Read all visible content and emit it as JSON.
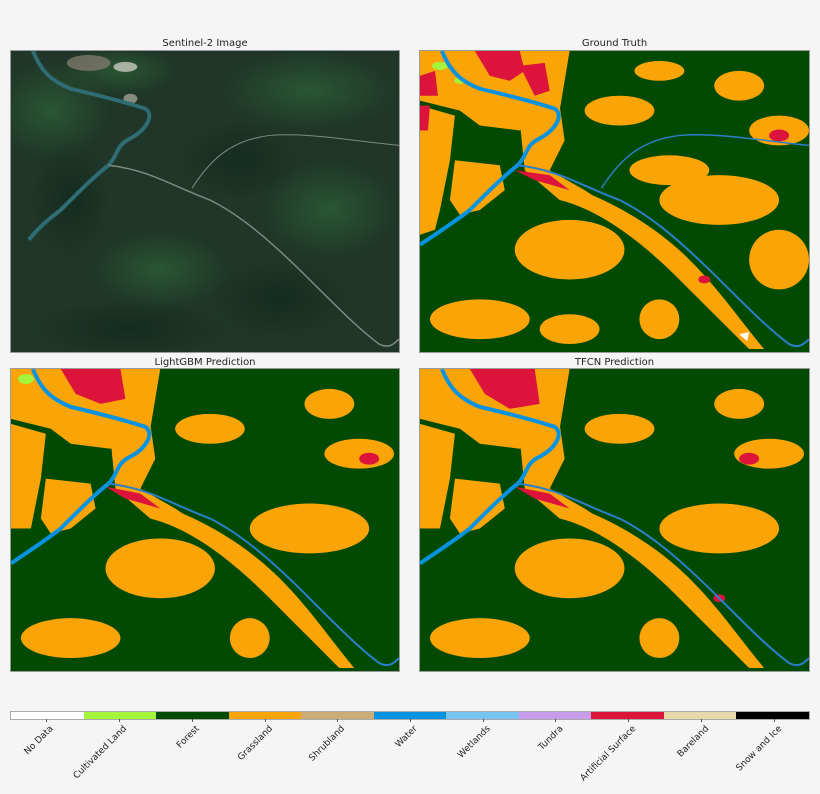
{
  "figure": {
    "panels": [
      {
        "id": "sentinel",
        "title": "Sentinel-2 Image"
      },
      {
        "id": "ground-truth",
        "title": "Ground Truth"
      },
      {
        "id": "lightgbm",
        "title": "LightGBM Prediction"
      },
      {
        "id": "tfcn",
        "title": "TFCN Prediction"
      }
    ]
  },
  "legend": {
    "classes": [
      {
        "label": "No Data",
        "color": "#ffffff"
      },
      {
        "label": "Cultivated Land",
        "color": "#a5f43c"
      },
      {
        "label": "Forest",
        "color": "#024a02"
      },
      {
        "label": "Grassland",
        "color": "#fba408"
      },
      {
        "label": "Shrubland",
        "color": "#cbac74"
      },
      {
        "label": "Water",
        "color": "#0793e0"
      },
      {
        "label": "Wetlands",
        "color": "#77c3f1"
      },
      {
        "label": "Tundra",
        "color": "#c79ceb"
      },
      {
        "label": "Artificial Surface",
        "color": "#dc143c"
      },
      {
        "label": "Bareland",
        "color": "#e6d8a8"
      },
      {
        "label": "Snow and Ice",
        "color": "#000000"
      }
    ]
  },
  "chart_data": {
    "type": "heatmap",
    "title": "",
    "subplots": [
      "Sentinel-2 Image",
      "Ground Truth",
      "LightGBM Prediction",
      "TFCN Prediction"
    ],
    "layout": "2x2 grid of land-cover maps with shared categorical colorbar below",
    "colorbar": {
      "orientation": "horizontal",
      "categories": [
        "No Data",
        "Cultivated Land",
        "Forest",
        "Grassland",
        "Shrubland",
        "Water",
        "Wetlands",
        "Tundra",
        "Artificial Surface",
        "Bareland",
        "Snow and Ice"
      ],
      "colors": [
        "#ffffff",
        "#a5f43c",
        "#024a02",
        "#fba408",
        "#cbac74",
        "#0793e0",
        "#77c3f1",
        "#c79ceb",
        "#dc143c",
        "#e6d8a8",
        "#000000"
      ],
      "tick_label_rotation": 45
    },
    "dominant_classes": [
      "Forest",
      "Grassland",
      "Artificial Surface",
      "Water",
      "Cultivated Land"
    ],
    "xlabel": "",
    "ylabel": "",
    "grid": false
  }
}
